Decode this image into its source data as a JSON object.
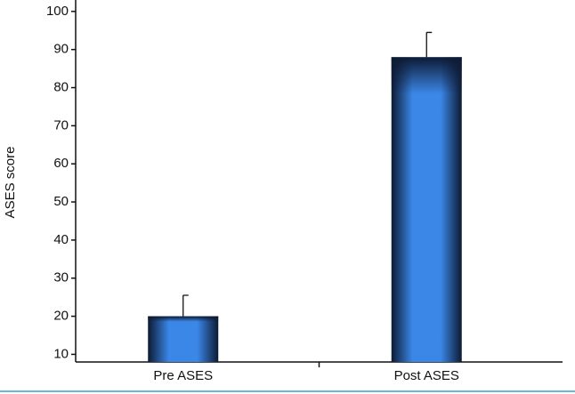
{
  "chart_data": {
    "type": "bar",
    "y_label": "ASES score",
    "categories": [
      "Pre ASES",
      "Post ASES"
    ],
    "values": [
      20,
      88
    ],
    "errors": [
      5.5,
      6.5
    ],
    "color": "#3b87e8",
    "ylim": [
      8,
      103
    ],
    "yticks": [
      10,
      20,
      30,
      40,
      50,
      60,
      70,
      80,
      90,
      100
    ],
    "grid": false
  }
}
